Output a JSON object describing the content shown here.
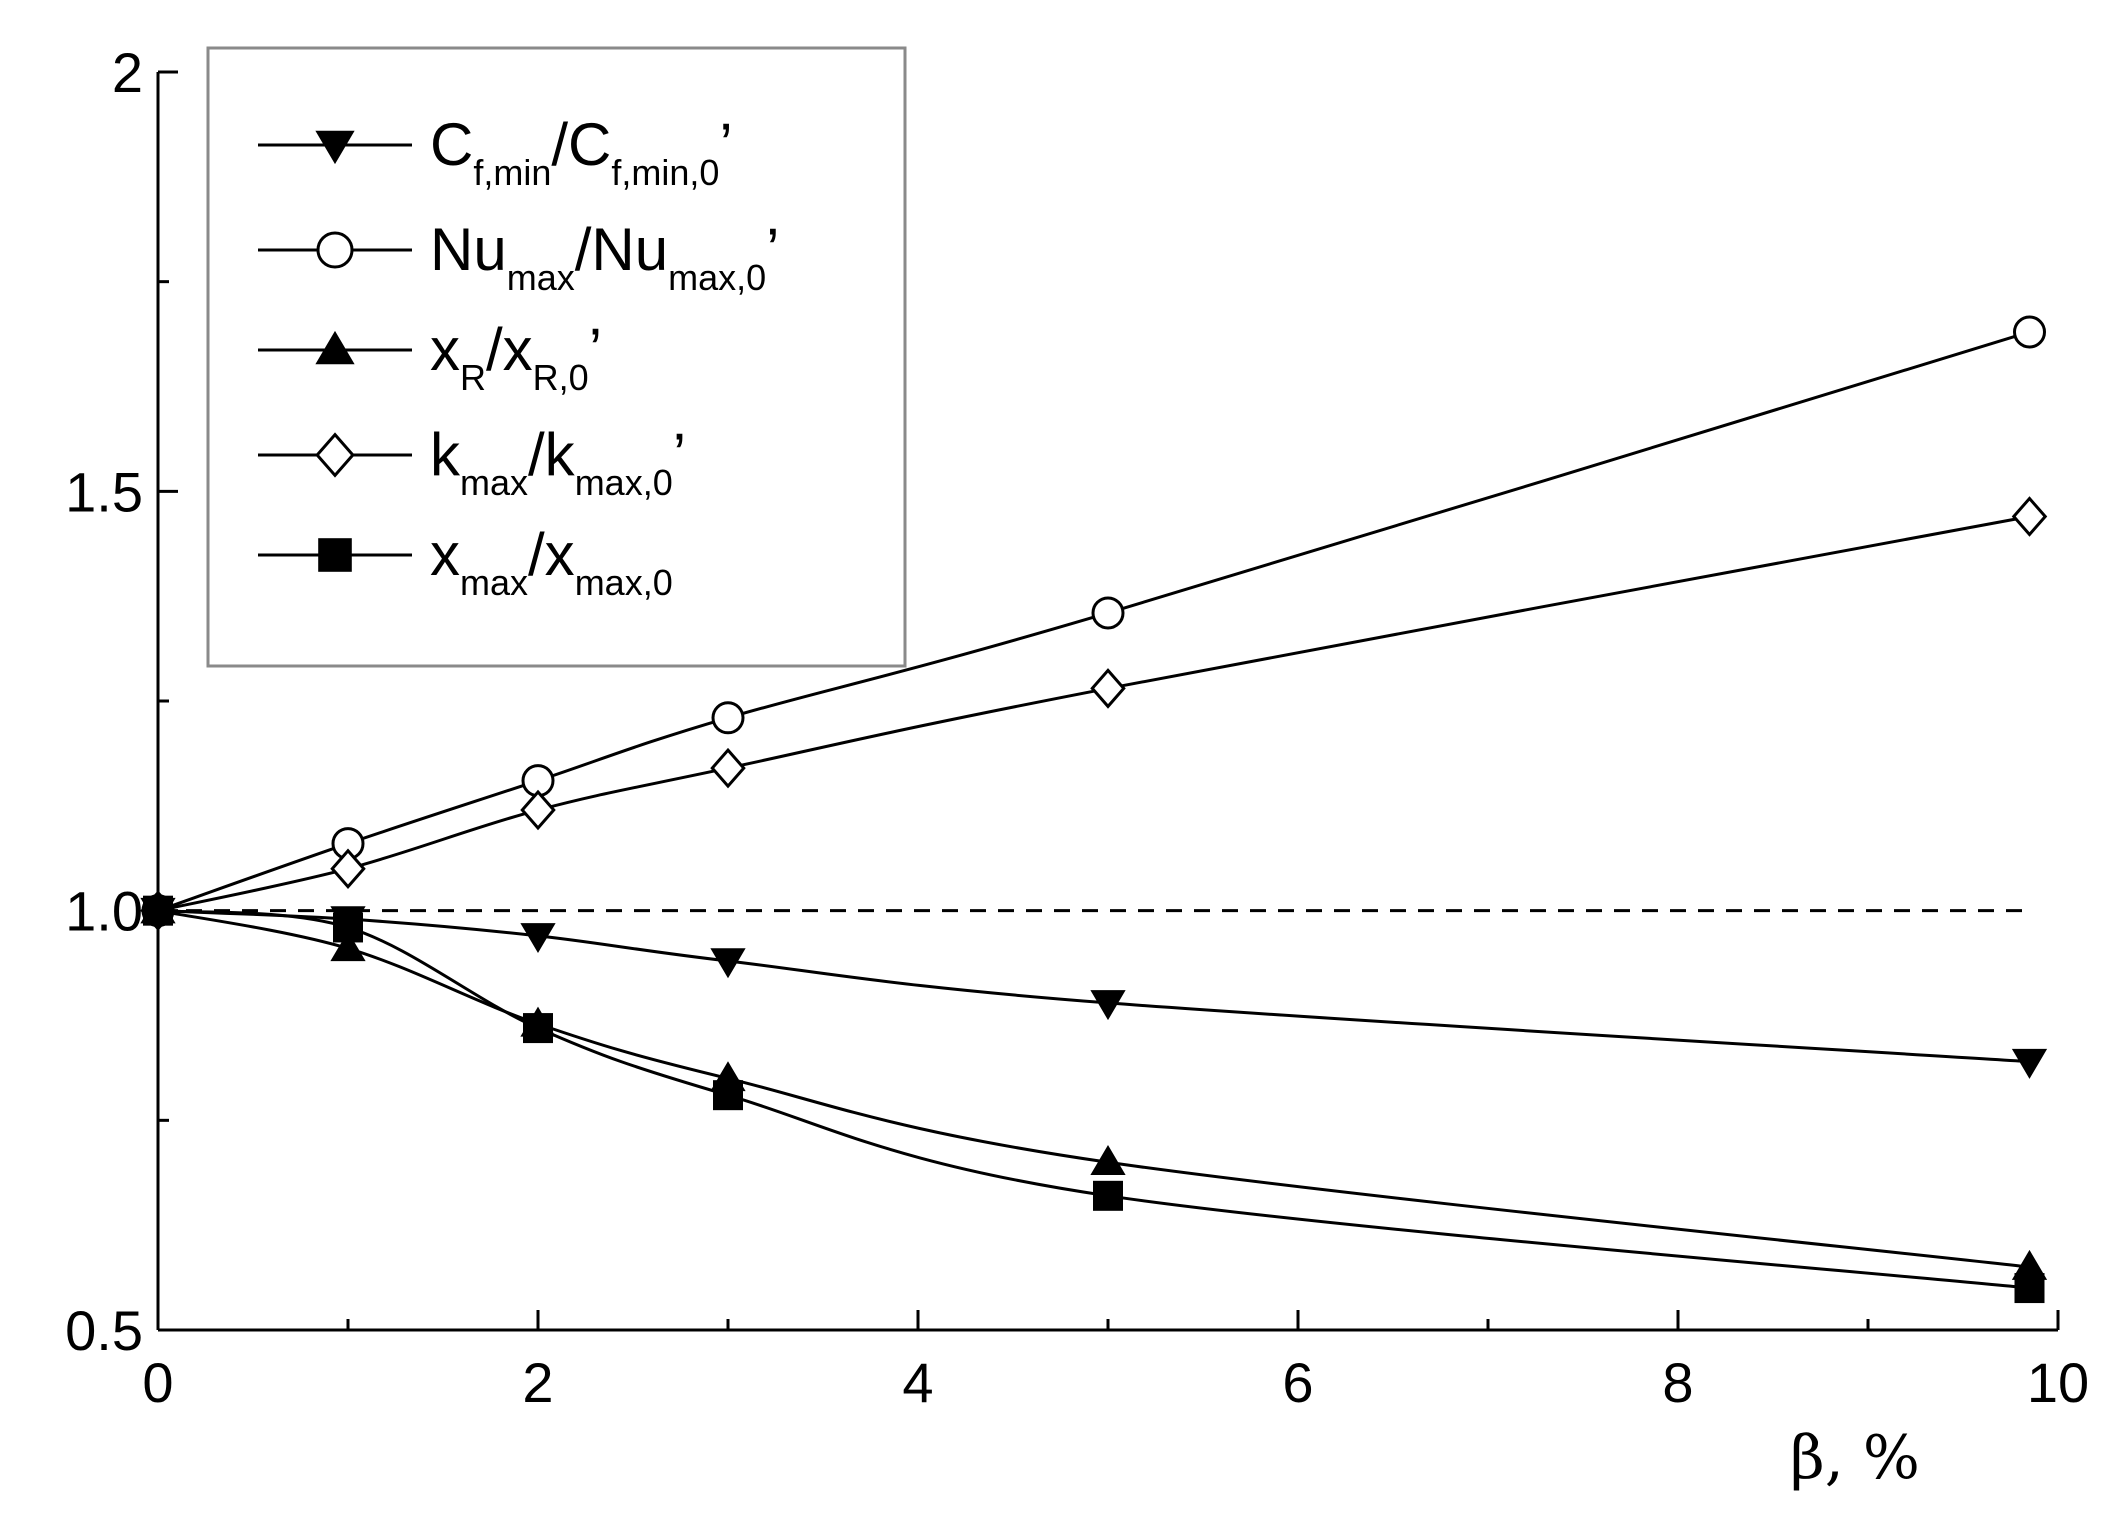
{
  "chart_data": {
    "type": "line",
    "title": "",
    "xlabel": "β, %",
    "ylabel": "",
    "xlim": [
      0,
      10
    ],
    "ylim": [
      0.5,
      2.0
    ],
    "x_ticks": [
      "0",
      "2",
      "4",
      "6",
      "8",
      "10"
    ],
    "y_ticks": [
      "0.5",
      "1.0",
      "1.5",
      "2"
    ],
    "x_minor_ticks": [
      1,
      3,
      5,
      7,
      9
    ],
    "y_minor_ticks": [
      0.75,
      1.25,
      1.75
    ],
    "grid": false,
    "legend_position": "top-left",
    "reference_line": {
      "y": 1.0,
      "style": "dashed",
      "x_range": [
        0,
        9.85
      ]
    },
    "series": [
      {
        "name": "Cf,min/Cf,min,0,",
        "legend": {
          "parts": [
            {
              "t": "C"
            },
            {
              "t": "f,min",
              "sub": true
            },
            {
              "t": "/C"
            },
            {
              "t": "f,min,0",
              "sub": true
            },
            {
              "t": "’"
            }
          ]
        },
        "marker": "triangle-down",
        "fill": "#000000",
        "x": [
          0,
          1,
          2,
          3,
          5,
          9.85
        ],
        "y": [
          1.0,
          0.99,
          0.97,
          0.94,
          0.89,
          0.82
        ]
      },
      {
        "name": "Numax/Numax,0,",
        "legend": {
          "parts": [
            {
              "t": "Nu"
            },
            {
              "t": "max",
              "sub": true
            },
            {
              "t": "/Nu"
            },
            {
              "t": "max,0",
              "sub": true
            },
            {
              "t": "’"
            }
          ]
        },
        "marker": "circle",
        "fill": "#ffffff",
        "x": [
          0,
          1,
          2,
          3,
          5,
          9.85
        ],
        "y": [
          1.0,
          1.08,
          1.155,
          1.23,
          1.355,
          1.69
        ]
      },
      {
        "name": "xR/xR,0,",
        "legend": {
          "parts": [
            {
              "t": "x"
            },
            {
              "t": "R",
              "sub": true
            },
            {
              "t": "/x"
            },
            {
              "t": "R,0",
              "sub": true
            },
            {
              "t": "’"
            }
          ]
        },
        "marker": "triangle-up",
        "fill": "#000000",
        "x": [
          0,
          1,
          2,
          3,
          5,
          9.85
        ],
        "y": [
          1.0,
          0.955,
          0.865,
          0.8,
          0.7,
          0.575
        ]
      },
      {
        "name": "kmax/kmax,0,",
        "legend": {
          "parts": [
            {
              "t": "k"
            },
            {
              "t": "max",
              "sub": true
            },
            {
              "t": "/k"
            },
            {
              "t": "max,0",
              "sub": true
            },
            {
              "t": "’"
            }
          ]
        },
        "marker": "diamond",
        "fill": "#ffffff",
        "x": [
          0,
          1,
          2,
          3,
          5,
          9.85
        ],
        "y": [
          1.0,
          1.05,
          1.12,
          1.17,
          1.265,
          1.47
        ]
      },
      {
        "name": "xmax/xmax,0",
        "legend": {
          "parts": [
            {
              "t": "x"
            },
            {
              "t": "max",
              "sub": true
            },
            {
              "t": "/x"
            },
            {
              "t": "max,0",
              "sub": true
            }
          ]
        },
        "marker": "square",
        "fill": "#000000",
        "x": [
          0,
          1,
          2,
          3,
          5,
          9.85
        ],
        "y": [
          1.0,
          0.98,
          0.86,
          0.78,
          0.66,
          0.55
        ]
      }
    ]
  }
}
